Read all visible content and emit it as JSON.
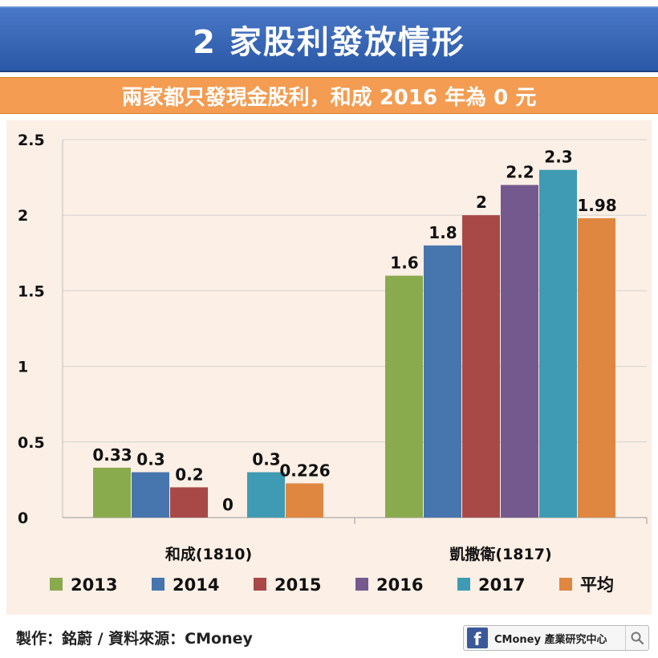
{
  "header": {
    "title": "2 家股利發放情形",
    "subtitle": "兩家都只發現金股利，和成 2016 年為 0 元"
  },
  "footer": {
    "credit": "製作：銘蔚 / 資料來源：CMoney",
    "badge_logo": "f",
    "badge_text": "CMoney 產業研究中心",
    "badge_icon": "search-icon"
  },
  "chart_data": {
    "type": "bar",
    "title": "",
    "xlabel": "",
    "ylabel": "",
    "ylim": [
      0,
      2.5
    ],
    "yticks": [
      "0",
      "0.5",
      "1",
      "1.5",
      "2",
      "2.5"
    ],
    "grid": true,
    "legend_position": "bottom",
    "categories": [
      "和成(1810)",
      "凱撒衛(1817)"
    ],
    "series": [
      {
        "name": "2013",
        "color": "#8aaa4e",
        "values": [
          0.33,
          1.6
        ],
        "labels": [
          "0.33",
          "1.6"
        ]
      },
      {
        "name": "2014",
        "color": "#4775ad",
        "values": [
          0.3,
          1.8
        ],
        "labels": [
          "0.3",
          "1.8"
        ]
      },
      {
        "name": "2015",
        "color": "#a84947",
        "values": [
          0.2,
          2
        ],
        "labels": [
          "0.2",
          "2"
        ]
      },
      {
        "name": "2016",
        "color": "#74598f",
        "values": [
          0,
          2.2
        ],
        "labels": [
          "0",
          "2.2"
        ]
      },
      {
        "name": "2017",
        "color": "#3f9bb3",
        "values": [
          0.3,
          2.3
        ],
        "labels": [
          "0.3",
          "2.3"
        ]
      },
      {
        "name": "平均",
        "color": "#df8740",
        "values": [
          0.226,
          1.98
        ],
        "labels": [
          "0.226",
          "1.98"
        ]
      }
    ]
  }
}
